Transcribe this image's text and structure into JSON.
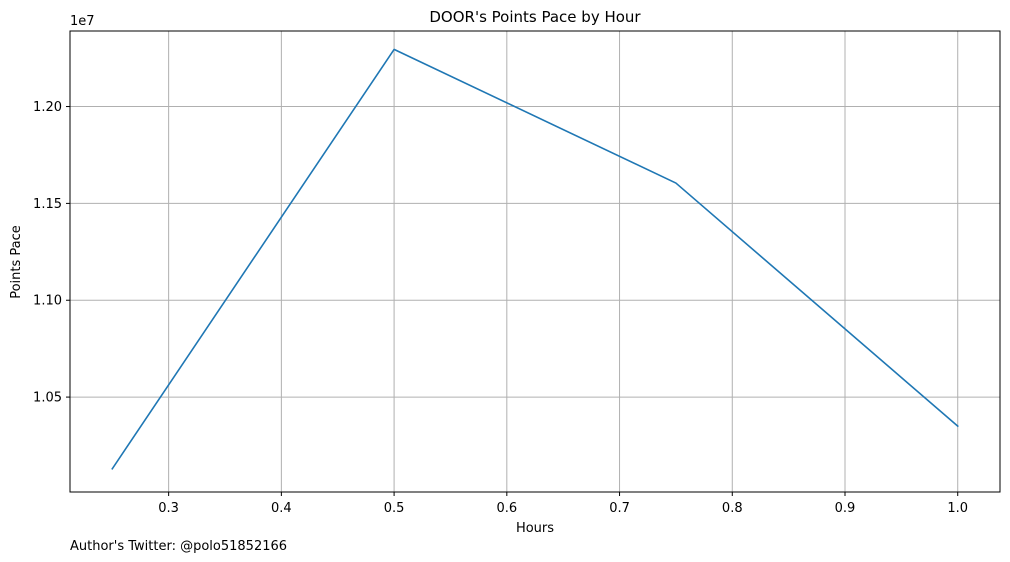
{
  "chart_data": {
    "type": "line",
    "title": "DOOR's Points Pace by Hour",
    "xlabel": "Hours",
    "ylabel": "Points Pace",
    "y_offset_label": "1e7",
    "y_scale": 10000000,
    "xlim": [
      0.2125,
      1.0375
    ],
    "ylim": [
      10010000,
      12390000
    ],
    "x_ticks": [
      0.3,
      0.4,
      0.5,
      0.6,
      0.7,
      0.8,
      0.9,
      1.0
    ],
    "x_tick_labels": [
      "0.3",
      "0.4",
      "0.5",
      "0.6",
      "0.7",
      "0.8",
      "0.9",
      "1.0"
    ],
    "y_ticks": [
      10500000,
      11000000,
      11500000,
      12000000
    ],
    "y_tick_labels": [
      "1.05",
      "1.10",
      "1.15",
      "1.20"
    ],
    "grid": true,
    "series": [
      {
        "color": "#1f77b4",
        "x": [
          0.25,
          0.5,
          0.75,
          1.0
        ],
        "y": [
          10130000,
          12295000,
          11605000,
          10350000
        ]
      }
    ]
  },
  "footer": {
    "author_text": "Author's Twitter: @polo51852166"
  }
}
